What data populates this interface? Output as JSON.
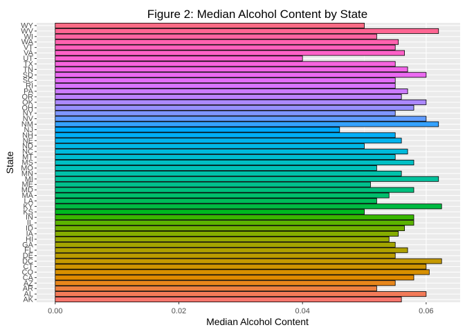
{
  "chart_data": {
    "type": "bar",
    "orientation": "horizontal",
    "title": "Figure 2: Median Alcohol Content by State",
    "xlabel": "Median Alcohol Content",
    "ylabel": "State",
    "xlim": [
      0,
      0.0625
    ],
    "xticks": [
      0.0,
      0.02,
      0.04,
      0.06
    ],
    "xtick_labels": [
      "0.00",
      "0.02",
      "0.04",
      "0.06"
    ],
    "grid": true,
    "legend": "none",
    "categories": [
      "AK",
      "AL",
      "AR",
      "AZ",
      "CA",
      "CO",
      "CT",
      "DC",
      "DE",
      "FL",
      "GA",
      "HI",
      "IA",
      "ID",
      "IL",
      "IN",
      "KS",
      "KY",
      "LA",
      "MA",
      "MD",
      "ME",
      "MI",
      "MN",
      "MO",
      "MS",
      "MT",
      "NC",
      "ND",
      "NE",
      "NH",
      "NJ",
      "NM",
      "NV",
      "NY",
      "OH",
      "OK",
      "OR",
      "PA",
      "RI",
      "SC",
      "SD",
      "TN",
      "TX",
      "UT",
      "VA",
      "VT",
      "WA",
      "WI",
      "WV",
      "WY"
    ],
    "values": [
      0.056,
      0.06,
      0.052,
      0.055,
      0.058,
      0.0605,
      0.06,
      0.0625,
      0.055,
      0.057,
      0.055,
      0.054,
      0.0555,
      0.0565,
      0.058,
      0.058,
      0.05,
      0.0625,
      0.052,
      0.054,
      0.058,
      0.051,
      0.062,
      0.056,
      0.052,
      0.058,
      0.055,
      0.057,
      0.05,
      0.056,
      0.055,
      0.046,
      0.062,
      0.06,
      0.055,
      0.058,
      0.06,
      0.056,
      0.057,
      0.055,
      0.055,
      0.06,
      0.057,
      0.055,
      0.04,
      0.0565,
      0.055,
      0.0555,
      0.052,
      0.062,
      0.05
    ],
    "colors": [
      "#F8766D",
      "#F37B59",
      "#ED8141",
      "#E7861B",
      "#E08B00",
      "#D89000",
      "#CF9400",
      "#C59900",
      "#BB9D00",
      "#AFA100",
      "#A3A500",
      "#95A900",
      "#85AD00",
      "#72B000",
      "#5BB300",
      "#39B600",
      "#00B81F",
      "#00BA42",
      "#00BC59",
      "#00BE6C",
      "#00BF7D",
      "#00C08D",
      "#00C19C",
      "#00C1AA",
      "#00C0B8",
      "#00BFC4",
      "#00BDD0",
      "#00BADB",
      "#00B7E5",
      "#00B3EE",
      "#00AEF6",
      "#00A9FD",
      "#35A2FF",
      "#619CFF",
      "#7F96FF",
      "#978FFF",
      "#AB88FF",
      "#BC81FF",
      "#CB7BFF",
      "#D774FD",
      "#E26EF7",
      "#EA69F0",
      "#F166E8",
      "#F664DE",
      "#FA62D4",
      "#FD61C8",
      "#FF61BC",
      "#FF62AF",
      "#FF64A1",
      "#FF6693",
      "#FC6B85"
    ]
  }
}
